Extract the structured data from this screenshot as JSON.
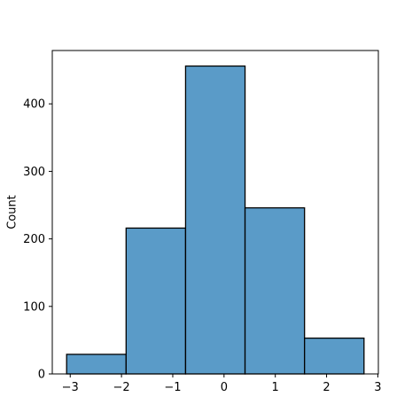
{
  "chart_data": {
    "type": "bar",
    "title": "",
    "xlabel": "",
    "ylabel": "Count",
    "bin_edges": [
      -3.07,
      -1.91,
      -0.75,
      0.41,
      1.57,
      2.73
    ],
    "values": [
      29,
      216,
      456,
      246,
      53
    ],
    "xlim": [
      -3.35,
      3.01
    ],
    "ylim": [
      0,
      479
    ],
    "xticks": [
      -3,
      -2,
      -1,
      0,
      1,
      2,
      3
    ],
    "xtick_labels": [
      "−3",
      "−2",
      "−1",
      "0",
      "1",
      "2",
      "3"
    ],
    "yticks": [
      0,
      100,
      200,
      300,
      400
    ],
    "ytick_labels": [
      "0",
      "100",
      "200",
      "300",
      "400"
    ],
    "grid": false,
    "colors": {
      "bar_fill": "#5a9bc8",
      "bar_edge": "#000000"
    }
  }
}
